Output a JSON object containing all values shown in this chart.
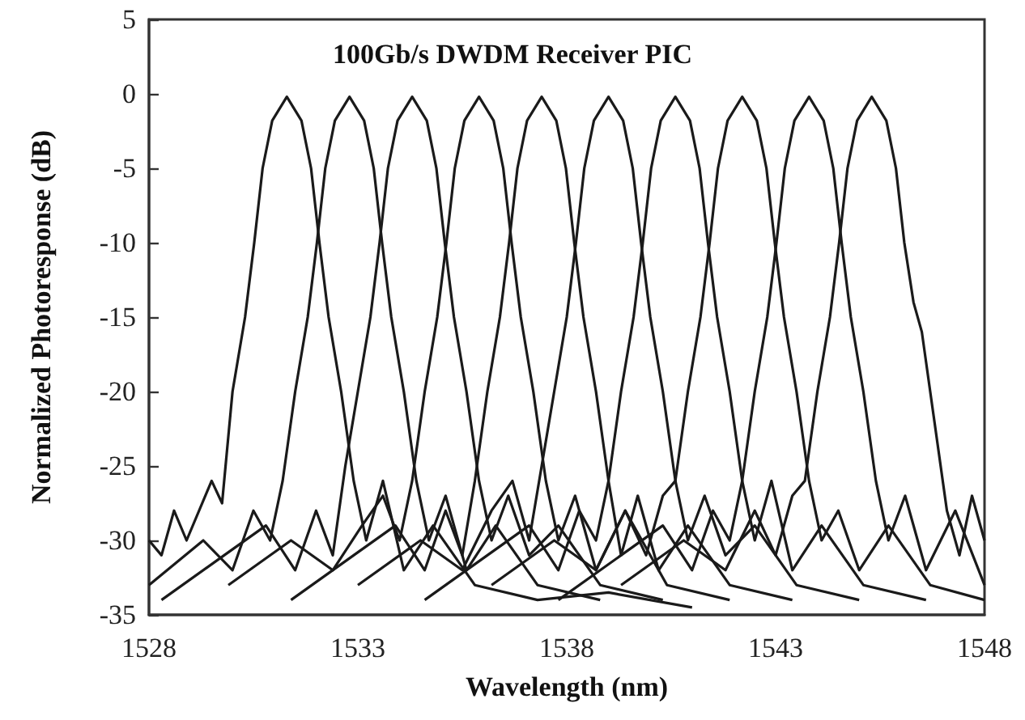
{
  "chart_data": {
    "type": "line",
    "title": "100Gb/s DWDM Receiver PIC",
    "xlabel": "Wavelength (nm)",
    "ylabel": "Normalized Photoresponse (dB)",
    "xlim": [
      1528,
      1548
    ],
    "xticks": [
      1528,
      1533,
      1538,
      1543,
      1548
    ],
    "ylim": [
      -35,
      5
    ],
    "yticks": [
      5,
      0,
      -5,
      -10,
      -15,
      -20,
      -25,
      -30,
      -35
    ],
    "series": [
      {
        "color": "#1a1a1a",
        "x": [
          1528,
          1528.3,
          1528.6,
          1528.9,
          1529.5,
          1529.75,
          1530.0,
          1530.3,
          1530.52,
          1530.72,
          1530.95,
          1531.3,
          1531.65,
          1531.88,
          1532.08,
          1532.3,
          1532.6,
          1532.9,
          1533.2,
          1533.6,
          1534.1,
          1534.8,
          1535.8,
          1537.3,
          1539,
          1541
        ],
        "values": [
          -30,
          -31,
          -28,
          -30,
          -26,
          -27.5,
          -20,
          -15,
          -10,
          -5,
          -1.8,
          -0.2,
          -1.8,
          -5,
          -10,
          -15,
          -20,
          -26,
          -30,
          -26,
          -32,
          -29,
          -33,
          -34,
          -33.5,
          -34.5
        ]
      },
      {
        "color": "#1a1a1a",
        "x": [
          1528,
          1529.3,
          1530.0,
          1530.5,
          1530.9,
          1531.2,
          1531.5,
          1531.8,
          1532.02,
          1532.22,
          1532.45,
          1532.8,
          1533.15,
          1533.38,
          1533.58,
          1533.8,
          1534.1,
          1534.4,
          1534.7,
          1535.1,
          1535.6,
          1536.3,
          1537.3,
          1538.8
        ],
        "values": [
          -33,
          -30,
          -32,
          -28,
          -30,
          -26,
          -20,
          -15,
          -10,
          -5,
          -1.8,
          -0.2,
          -1.8,
          -5,
          -10,
          -15,
          -20,
          -26,
          -30,
          -27,
          -32,
          -29,
          -33,
          -34
        ]
      },
      {
        "color": "#1a1a1a",
        "x": [
          1528.3,
          1529.8,
          1530.8,
          1531.5,
          1532.0,
          1532.4,
          1532.7,
          1533.0,
          1533.3,
          1533.52,
          1533.72,
          1533.95,
          1534.3,
          1534.65,
          1534.88,
          1535.08,
          1535.3,
          1535.6,
          1535.9,
          1536.2,
          1536.6,
          1537.1,
          1537.8,
          1538.8,
          1540.3
        ],
        "values": [
          -34,
          -31,
          -29,
          -32,
          -28,
          -31,
          -25,
          -20,
          -15,
          -10,
          -5,
          -1.8,
          -0.2,
          -1.8,
          -5,
          -10,
          -15,
          -20,
          -26,
          -30,
          -27,
          -31,
          -29,
          -33,
          -34
        ]
      },
      {
        "color": "#1a1a1a",
        "x": [
          1529.9,
          1531.4,
          1532.4,
          1533.1,
          1533.6,
          1534.0,
          1534.3,
          1534.6,
          1534.9,
          1535.12,
          1535.32,
          1535.55,
          1535.9,
          1536.25,
          1536.48,
          1536.68,
          1536.9,
          1537.2,
          1537.5,
          1537.8,
          1538.2,
          1538.7,
          1539.4,
          1540.4,
          1541.9
        ],
        "values": [
          -33,
          -30,
          -32,
          -29,
          -27,
          -30,
          -26,
          -20,
          -15,
          -10,
          -5,
          -1.8,
          -0.2,
          -1.8,
          -5,
          -10,
          -15,
          -20,
          -26,
          -30,
          -27,
          -32,
          -28,
          -33,
          -34
        ]
      },
      {
        "color": "#1a1a1a",
        "x": [
          1531.4,
          1532.9,
          1533.9,
          1534.6,
          1535.1,
          1535.5,
          1535.8,
          1536.1,
          1536.4,
          1536.62,
          1536.82,
          1537.05,
          1537.4,
          1537.75,
          1537.98,
          1538.18,
          1538.4,
          1538.7,
          1539.0,
          1539.3,
          1539.7,
          1540.2,
          1540.9,
          1541.9,
          1543.4
        ],
        "values": [
          -34,
          -31,
          -29,
          -32,
          -28,
          -31,
          -26,
          -20,
          -15,
          -10,
          -5,
          -1.8,
          -0.2,
          -1.8,
          -5,
          -10,
          -15,
          -20,
          -26,
          -31,
          -27,
          -32,
          -29,
          -33,
          -34
        ]
      },
      {
        "color": "#1a1a1a",
        "x": [
          1533.0,
          1534.5,
          1535.5,
          1536.2,
          1536.7,
          1537.1,
          1537.4,
          1537.7,
          1538.0,
          1538.22,
          1538.42,
          1538.65,
          1539.0,
          1539.35,
          1539.58,
          1539.78,
          1540.0,
          1540.3,
          1540.6,
          1540.9,
          1541.3,
          1541.8,
          1542.5,
          1543.5,
          1545.0
        ],
        "values": [
          -33,
          -30,
          -32,
          -28,
          -26,
          -30,
          -25,
          -20,
          -15,
          -10,
          -5,
          -1.8,
          -0.2,
          -1.8,
          -5,
          -10,
          -15,
          -20,
          -26,
          -30,
          -27,
          -31,
          -29,
          -33,
          -34
        ]
      },
      {
        "color": "#1a1a1a",
        "x": [
          1534.6,
          1536.1,
          1537.1,
          1537.8,
          1538.3,
          1538.7,
          1539.0,
          1539.3,
          1539.6,
          1539.82,
          1540.02,
          1540.25,
          1540.6,
          1540.95,
          1541.18,
          1541.38,
          1541.6,
          1541.9,
          1542.2,
          1542.5,
          1542.9,
          1543.4,
          1544.1,
          1545.1,
          1546.6
        ],
        "values": [
          -34,
          -31,
          -29,
          -32,
          -28,
          -30,
          -26,
          -20,
          -15,
          -10,
          -5,
          -1.8,
          -0.2,
          -1.8,
          -5,
          -10,
          -15,
          -20,
          -26,
          -30,
          -26,
          -32,
          -29,
          -33,
          -34
        ]
      },
      {
        "color": "#1a1a1a",
        "x": [
          1536.2,
          1537.7,
          1538.7,
          1539.4,
          1539.9,
          1540.3,
          1540.6,
          1540.9,
          1541.2,
          1541.42,
          1541.62,
          1541.85,
          1542.2,
          1542.55,
          1542.78,
          1542.98,
          1543.2,
          1543.5,
          1543.8,
          1544.1,
          1544.5,
          1545.0,
          1545.7,
          1546.7,
          1548
        ],
        "values": [
          -33,
          -30,
          -32,
          -28,
          -31,
          -27,
          -26,
          -20,
          -15,
          -10,
          -5,
          -1.8,
          -0.2,
          -1.8,
          -5,
          -10,
          -15,
          -20,
          -26,
          -30,
          -28,
          -32,
          -29,
          -33,
          -34
        ]
      },
      {
        "color": "#1a1a1a",
        "x": [
          1537.8,
          1539.3,
          1540.3,
          1541.0,
          1541.5,
          1541.9,
          1542.2,
          1542.5,
          1542.8,
          1543.02,
          1543.22,
          1543.45,
          1543.8,
          1544.15,
          1544.38,
          1544.58,
          1544.8,
          1545.1,
          1545.4,
          1545.7,
          1546.1,
          1546.6,
          1547.3,
          1548
        ],
        "values": [
          -34,
          -31,
          -29,
          -32,
          -28,
          -30,
          -26,
          -20,
          -15,
          -10,
          -5,
          -1.8,
          -0.2,
          -1.8,
          -5,
          -10,
          -15,
          -20,
          -26,
          -30,
          -27,
          -32,
          -28,
          -33
        ]
      },
      {
        "color": "#1a1a1a",
        "x": [
          1539.3,
          1540.8,
          1541.8,
          1542.5,
          1543.0,
          1543.4,
          1543.7,
          1544.0,
          1544.3,
          1544.52,
          1544.72,
          1544.95,
          1545.3,
          1545.65,
          1545.88,
          1546.08,
          1546.3,
          1546.5,
          1546.8,
          1547.1,
          1547.4,
          1547.7,
          1548
        ],
        "values": [
          -33,
          -30,
          -32,
          -28,
          -31,
          -27,
          -26,
          -20,
          -15,
          -10,
          -5,
          -1.8,
          -0.2,
          -1.8,
          -5,
          -10,
          -14,
          -16,
          -22,
          -28,
          -31,
          -27,
          -30
        ]
      }
    ]
  }
}
